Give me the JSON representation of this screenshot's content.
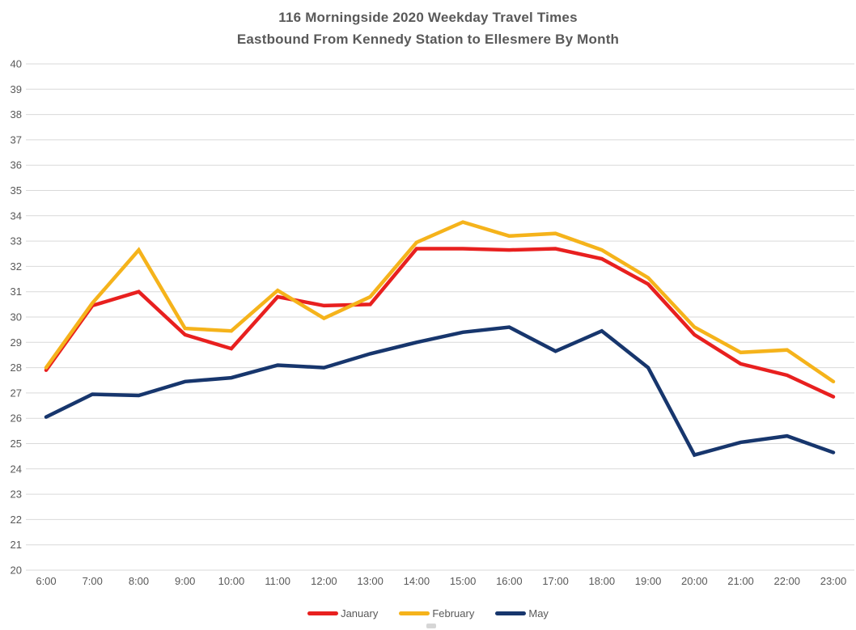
{
  "chart_data": {
    "type": "line",
    "title": "116 Morningside 2020 Weekday Travel Times",
    "subtitle": "Eastbound From Kennedy Station to Ellesmere By Month",
    "x": [
      "6:00",
      "7:00",
      "8:00",
      "9:00",
      "10:00",
      "11:00",
      "12:00",
      "13:00",
      "14:00",
      "15:00",
      "16:00",
      "17:00",
      "18:00",
      "19:00",
      "20:00",
      "21:00",
      "22:00",
      "23:00"
    ],
    "series": [
      {
        "name": "January",
        "color": "#e8201f",
        "values": [
          27.9,
          30.45,
          31.0,
          29.3,
          28.75,
          30.8,
          30.45,
          30.5,
          32.7,
          32.7,
          32.65,
          32.7,
          32.3,
          31.3,
          29.3,
          28.15,
          27.7,
          26.85
        ]
      },
      {
        "name": "February",
        "color": "#f5b31b",
        "values": [
          28.0,
          30.55,
          32.65,
          29.55,
          29.45,
          31.05,
          29.95,
          30.8,
          32.95,
          33.75,
          33.2,
          33.3,
          32.65,
          31.55,
          29.6,
          28.6,
          28.7,
          27.45
        ]
      },
      {
        "name": "May",
        "color": "#17366d",
        "values": [
          26.05,
          26.95,
          26.9,
          27.45,
          27.6,
          28.1,
          28.0,
          28.55,
          29.0,
          29.4,
          29.6,
          28.65,
          29.45,
          28.0,
          24.55,
          25.05,
          25.3,
          24.65
        ]
      }
    ],
    "ylim": [
      20,
      40
    ],
    "ytick_step": 1,
    "xlabel": "",
    "ylabel": "",
    "grid": "horizontal",
    "legend_position": "bottom-center"
  },
  "style": {
    "gridline_color": "#d9d9d9",
    "tick_label_color": "#595959",
    "title_color": "#595959",
    "background": "#ffffff"
  }
}
